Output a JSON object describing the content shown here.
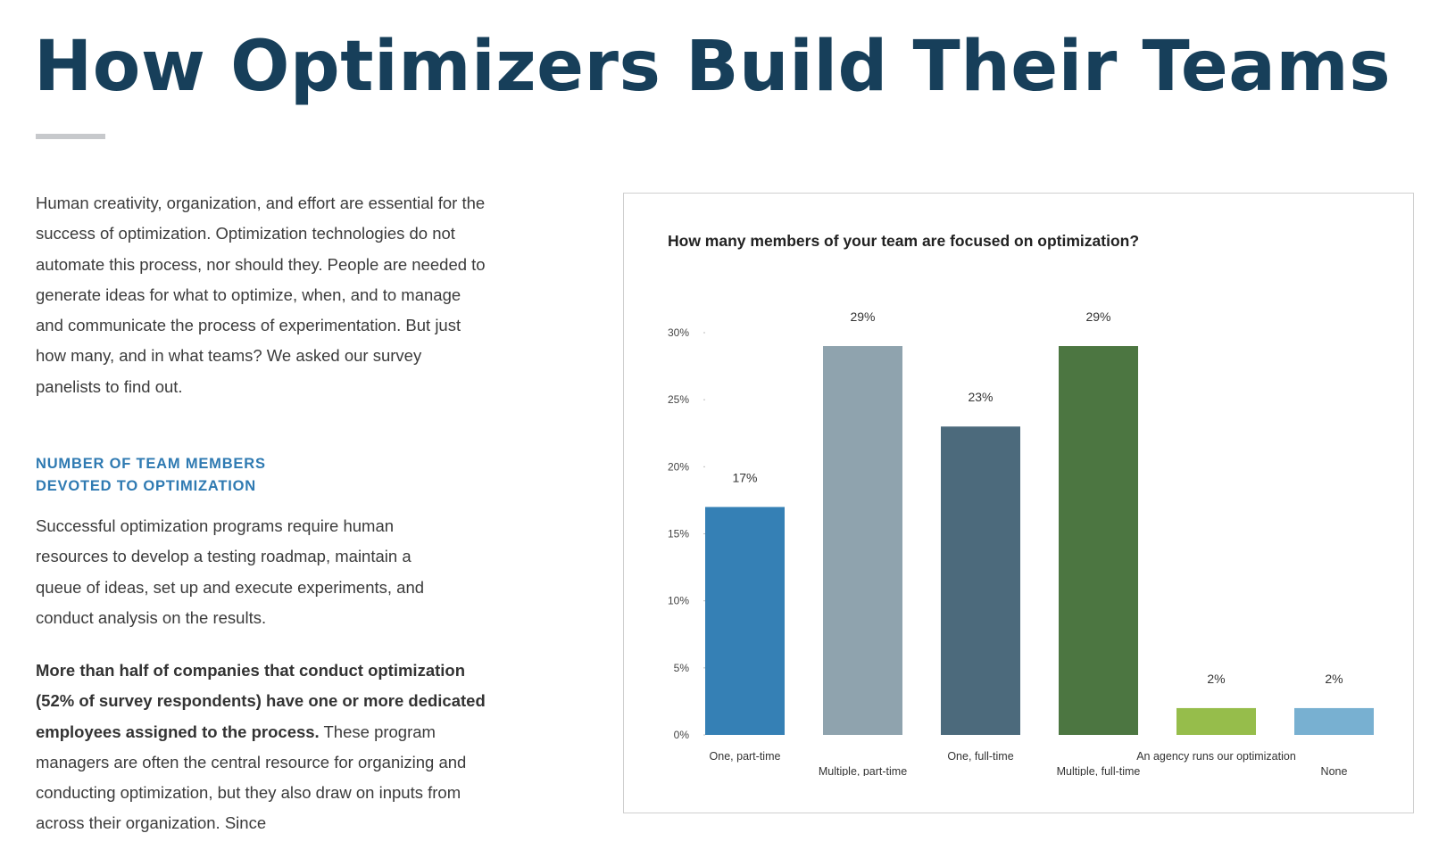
{
  "page": {
    "title": "How Optimizers Build Their Teams",
    "intro": "Human creativity, organization, and effort are essential for the success of optimization. Optimization technologies do not automate this process, nor should they. People are needed to generate ideas for what to optimize, when, and to manage and communicate the process of experimentation. But just how many, and in what teams? We asked our survey panelists to find out.",
    "section_heading_line1": "NUMBER OF TEAM MEMBERS",
    "section_heading_line2": "DEVOTED TO OPTIMIZATION",
    "section_body": "Successful optimization programs require human resources to develop a testing roadmap, maintain a queue of ideas, set up and execute experiments, and conduct analysis on the results.",
    "bold_lead": "More than half of companies that conduct optimization (52% of survey respondents) have one or more dedicated employees assigned to the process.",
    "bold_follow": " These program managers are often the central resource for organizing and conducting optimization, but they also draw on inputs from across their organization. Since"
  },
  "chart_data": {
    "type": "bar",
    "title": "How many members of your team are focused on optimization?",
    "categories": [
      "One, part-time",
      "Multiple, part-time",
      "One, full-time",
      "Multiple, full-time",
      "An agency runs our optimization",
      "None"
    ],
    "values": [
      17,
      29,
      23,
      29,
      2,
      2
    ],
    "value_labels": [
      "17%",
      "29%",
      "23%",
      "29%",
      "2%",
      "2%"
    ],
    "colors": [
      "#3580b5",
      "#8fa3ae",
      "#4c6a7c",
      "#4c7641",
      "#96bd4b",
      "#78b0d1"
    ],
    "yticks": [
      0,
      5,
      10,
      15,
      20,
      25,
      30
    ],
    "ytick_labels": [
      "0%",
      "5%",
      "10%",
      "15%",
      "20%",
      "25%",
      "30%"
    ],
    "ylim": [
      0,
      30
    ],
    "xlabel": "",
    "ylabel": "",
    "grid": false,
    "legend": "none"
  }
}
